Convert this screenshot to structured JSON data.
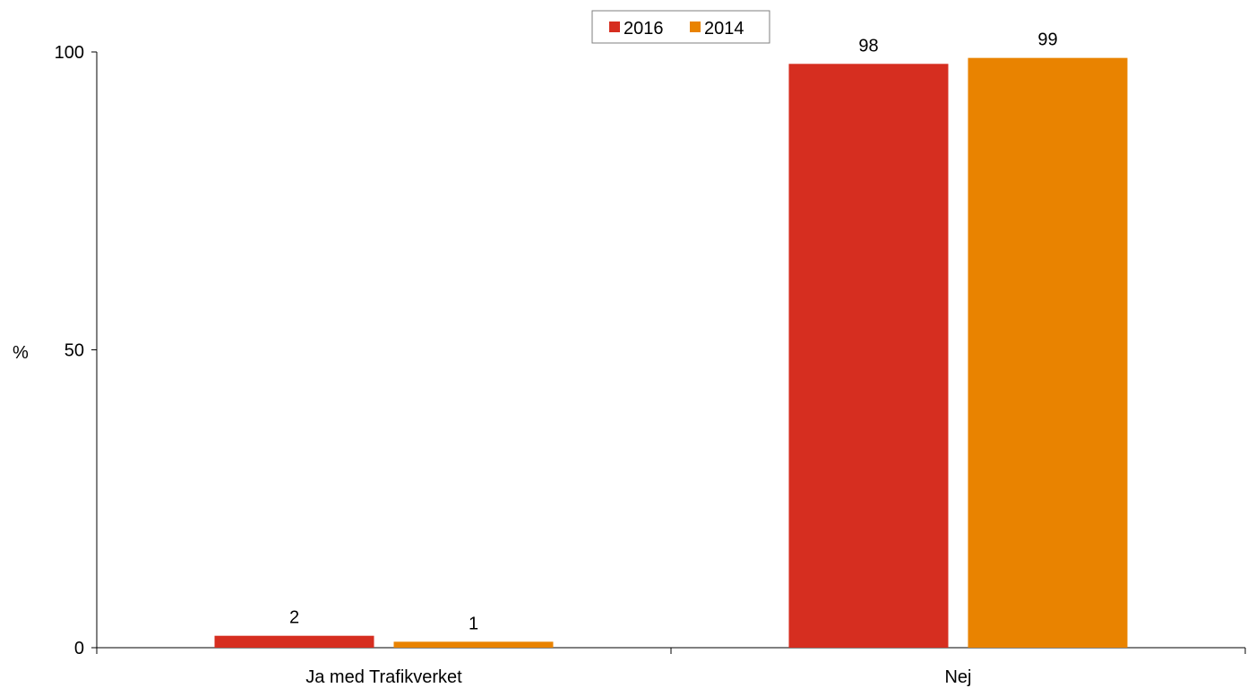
{
  "chart_data": {
    "type": "bar",
    "categories": [
      "Ja med Trafikverket",
      "Nej"
    ],
    "series": [
      {
        "name": "2016",
        "values": [
          2,
          98
        ],
        "color": "#d62e20"
      },
      {
        "name": "2014",
        "values": [
          1,
          99
        ],
        "color": "#e98300"
      }
    ],
    "ylabel": "%",
    "xlabel": "",
    "ylim": [
      0,
      100
    ],
    "yticks": [
      0,
      50,
      100
    ],
    "data_labels": true,
    "grid": false,
    "legend_position": "top-center"
  }
}
